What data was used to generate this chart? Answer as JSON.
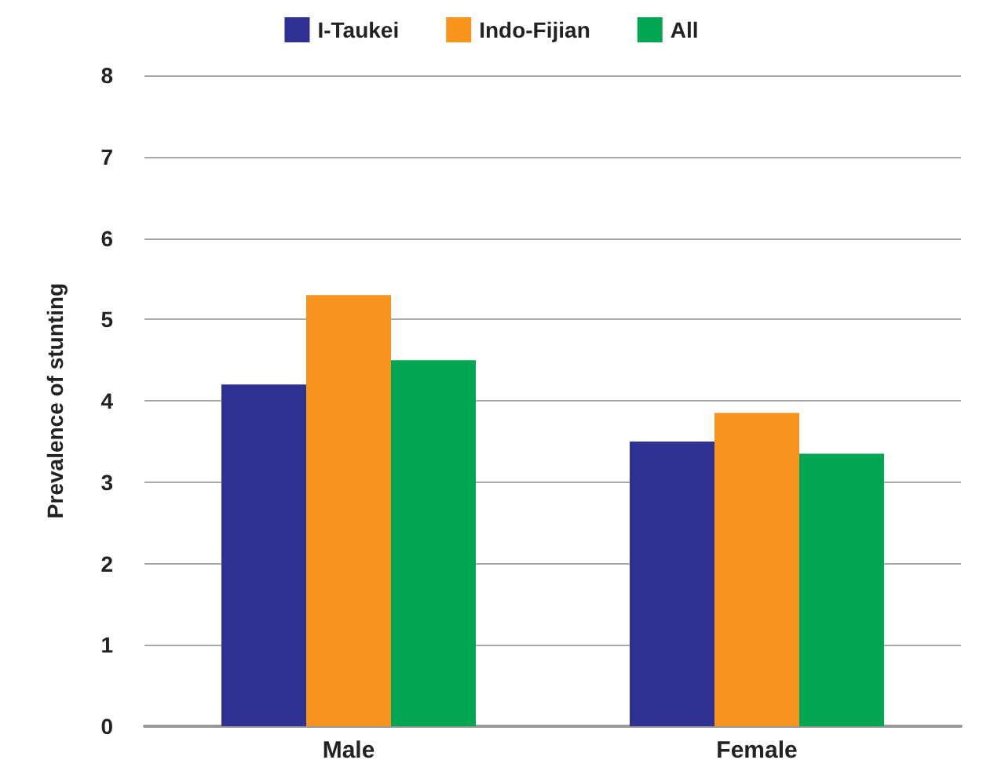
{
  "chart_data": {
    "type": "bar",
    "ylabel": "Prevalence of stunting",
    "categories": [
      "Male",
      "Female"
    ],
    "series": [
      {
        "name": "I-Taukei",
        "color": "#2e3192",
        "values": [
          4.2,
          3.5
        ]
      },
      {
        "name": "Indo-Fijian",
        "color": "#f7941d",
        "values": [
          5.3,
          3.85
        ]
      },
      {
        "name": "All",
        "color": "#00a651",
        "values": [
          4.5,
          3.35
        ]
      }
    ],
    "ylim": [
      0,
      8
    ],
    "yticks": [
      0,
      1,
      2,
      3,
      4,
      5,
      6,
      7,
      8
    ],
    "grid": "y",
    "legend": "top"
  }
}
